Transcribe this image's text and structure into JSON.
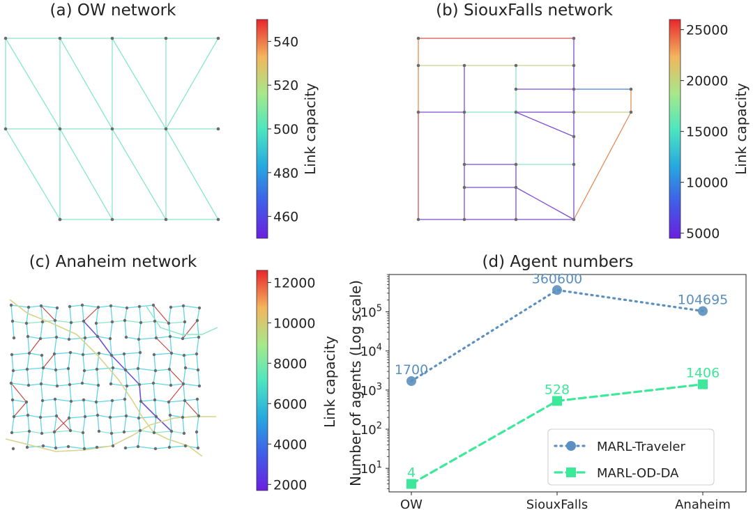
{
  "colors": {
    "low_capacity_link": "#7b4bdc",
    "mid_capacity_link": "#87e8c4",
    "high_capacity_link": "#c83c3c",
    "node": "#6b6b6b",
    "marl_traveler": "#5b8fbf",
    "marl_od_da": "#3de89a"
  },
  "panels": {
    "ow": {
      "title": "(a) OW network",
      "link_color": "#87e8c4",
      "colorbar": {
        "label": "Link capacity",
        "ticks": [
          "540",
          "520",
          "500",
          "480",
          "460"
        ],
        "range": [
          450,
          550
        ]
      }
    },
    "siouxfalls": {
      "title": "(b) SiouxFalls network",
      "colorbar": {
        "label": "Link capacity",
        "ticks": [
          "25000",
          "20000",
          "15000",
          "10000",
          "5000"
        ],
        "range": [
          4500,
          26000
        ]
      }
    },
    "anaheim": {
      "title": "(c) Anaheim network",
      "colorbar": {
        "label": "Link capacity",
        "ticks": [
          "12000",
          "10000",
          "8000",
          "6000",
          "4000",
          "2000"
        ],
        "range": [
          1700,
          12600
        ]
      }
    }
  },
  "chart_data": [
    {
      "type": "line",
      "title": "(d) Agent numbers",
      "xlabel": "",
      "ylabel": "Number of agents (Log scale)",
      "yscale": "log",
      "ylim": [
        2.5,
        900000
      ],
      "categories": [
        "OW",
        "SiouxFalls",
        "Anaheim"
      ],
      "yticks": [
        {
          "value": 10,
          "base": "10",
          "exp": "1"
        },
        {
          "value": 100,
          "base": "10",
          "exp": "2"
        },
        {
          "value": 1000,
          "base": "10",
          "exp": "3"
        },
        {
          "value": 10000,
          "base": "10",
          "exp": "4"
        },
        {
          "value": 100000,
          "base": "10",
          "exp": "5"
        }
      ],
      "series": [
        {
          "name": "MARL-Traveler",
          "values": [
            1700,
            360600,
            104695
          ],
          "labels": [
            "1700",
            "360600",
            "104695"
          ],
          "color": "#5b8fbf",
          "marker": "circle",
          "linestyle": "dotted"
        },
        {
          "name": "MARL-OD-DA",
          "values": [
            4,
            528,
            1406
          ],
          "labels": [
            "4",
            "528",
            "1406"
          ],
          "color": "#3de89a",
          "marker": "square",
          "linestyle": "dashed"
        }
      ],
      "legend": "bottom-right"
    }
  ]
}
